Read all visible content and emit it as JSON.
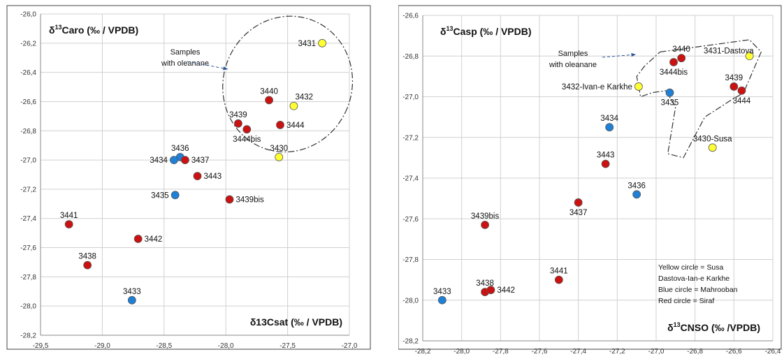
{
  "chart_data": [
    {
      "type": "scatter",
      "title": "",
      "ylabel": {
        "pre": "δ",
        "sup": "13",
        "post": "Caro (‰ / VPDB)"
      },
      "xlabel": {
        "pre": "δ13Csat (‰ / VPDB)",
        "sup": "",
        "post": ""
      },
      "xlim": [
        -29.5,
        -27.0
      ],
      "ylim": [
        -28.2,
        -26.0
      ],
      "xticks": [
        "-29,5",
        "-29,0",
        "-28,5",
        "-28,0",
        "-27,5",
        "-27,0"
      ],
      "yticks": [
        "-26,0",
        "-26,2",
        "-26,4",
        "-26,6",
        "-26,8",
        "-27,0",
        "-27,2",
        "-27,4",
        "-27,6",
        "-27,8",
        "-28,0",
        "-28,2"
      ],
      "grid": true,
      "colors": {
        "yellow": "#ffff33",
        "red": "#cc1111",
        "blue": "#1f80d8"
      },
      "annotation": [
        "Samples",
        "with oleanane"
      ],
      "points": [
        {
          "label": "3431",
          "x": -27.22,
          "y": -26.2,
          "color": "yellow",
          "pos": "left"
        },
        {
          "label": "3440",
          "x": -27.65,
          "y": -26.59,
          "color": "red",
          "pos": "top"
        },
        {
          "label": "3432",
          "x": -27.45,
          "y": -26.63,
          "color": "yellow",
          "pos": "topright"
        },
        {
          "label": "3439",
          "x": -27.9,
          "y": -26.75,
          "color": "red",
          "pos": "top"
        },
        {
          "label": "3444bis",
          "x": -27.83,
          "y": -26.79,
          "color": "red",
          "pos": "below"
        },
        {
          "label": "3444",
          "x": -27.56,
          "y": -26.76,
          "color": "red",
          "pos": "right"
        },
        {
          "label": "3430",
          "x": -27.57,
          "y": -26.98,
          "color": "yellow",
          "pos": "top"
        },
        {
          "label": "3436",
          "x": -28.37,
          "y": -26.98,
          "color": "blue",
          "pos": "top"
        },
        {
          "label": "3434",
          "x": -28.42,
          "y": -27.0,
          "color": "blue",
          "pos": "left"
        },
        {
          "label": "3437",
          "x": -28.33,
          "y": -27.0,
          "color": "red",
          "pos": "right"
        },
        {
          "label": "3443",
          "x": -28.23,
          "y": -27.11,
          "color": "red",
          "pos": "right"
        },
        {
          "label": "3435",
          "x": -28.41,
          "y": -27.24,
          "color": "blue",
          "pos": "left"
        },
        {
          "label": "3439bis",
          "x": -27.97,
          "y": -27.27,
          "color": "red",
          "pos": "right"
        },
        {
          "label": "3441",
          "x": -29.27,
          "y": -27.44,
          "color": "red",
          "pos": "top"
        },
        {
          "label": "3442",
          "x": -28.71,
          "y": -27.54,
          "color": "red",
          "pos": "right"
        },
        {
          "label": "3438",
          "x": -29.12,
          "y": -27.72,
          "color": "red",
          "pos": "top"
        },
        {
          "label": "3433",
          "x": -28.76,
          "y": -27.96,
          "color": "blue",
          "pos": "top"
        }
      ]
    },
    {
      "type": "scatter",
      "title": "",
      "ylabel": {
        "pre": "δ",
        "sup": "13",
        "post": "Casp (‰ / VPDB)"
      },
      "xlabel": {
        "pre": "δ",
        "sup": "13",
        "post": "CNSO (‰ /VPDB)"
      },
      "xlim": [
        -28.2,
        -26.4
      ],
      "ylim": [
        -28.2,
        -26.6
      ],
      "xticks": [
        "-28,2",
        "-28,0",
        "-27,8",
        "-27,6",
        "-27,4",
        "-27,2",
        "-27,0",
        "-26,8",
        "-26,6",
        "-26,4"
      ],
      "yticks": [
        "-26,6",
        "-26,8",
        "-27,0",
        "-27,2",
        "-27,4",
        "-27,6",
        "-27,8",
        "-28,0",
        "-28,2"
      ],
      "grid": true,
      "colors": {
        "yellow": "#ffff33",
        "red": "#cc1111",
        "blue": "#1f80d8"
      },
      "annotation": [
        "Samples",
        "with oleanane"
      ],
      "legend": [
        "Yellow circle = Susa",
        "Dastova-Ian-e Karkhe",
        "Blue circle = Mahrooban",
        "Red circle = Siraf"
      ],
      "points": [
        {
          "label": "3431-Dastova",
          "x": -26.52,
          "y": -26.8,
          "color": "yellow",
          "pos": "topleft"
        },
        {
          "label": "3440",
          "x": -26.87,
          "y": -26.81,
          "color": "red",
          "pos": "top"
        },
        {
          "label": "3444bis",
          "x": -26.91,
          "y": -26.83,
          "color": "red",
          "pos": "below"
        },
        {
          "label": "3439",
          "x": -26.6,
          "y": -26.95,
          "color": "red",
          "pos": "top"
        },
        {
          "label": "3444",
          "x": -26.56,
          "y": -26.97,
          "color": "red",
          "pos": "below"
        },
        {
          "label": "3432-Ivan-e Karkhe",
          "x": -27.09,
          "y": -26.95,
          "color": "yellow",
          "pos": "left"
        },
        {
          "label": "3435",
          "x": -26.93,
          "y": -26.98,
          "color": "blue",
          "pos": "below"
        },
        {
          "label": "3434",
          "x": -27.24,
          "y": -27.15,
          "color": "blue",
          "pos": "top"
        },
        {
          "label": "3430-Susa",
          "x": -26.71,
          "y": -27.25,
          "color": "yellow",
          "pos": "topcenter"
        },
        {
          "label": "3443",
          "x": -27.26,
          "y": -27.33,
          "color": "red",
          "pos": "top"
        },
        {
          "label": "3436",
          "x": -27.1,
          "y": -27.48,
          "color": "blue",
          "pos": "top"
        },
        {
          "label": "3437",
          "x": -27.4,
          "y": -27.52,
          "color": "red",
          "pos": "below"
        },
        {
          "label": "3439bis",
          "x": -27.88,
          "y": -27.63,
          "color": "red",
          "pos": "top"
        },
        {
          "label": "3441",
          "x": -27.5,
          "y": -27.9,
          "color": "red",
          "pos": "top"
        },
        {
          "label": "3438",
          "x": -27.88,
          "y": -27.96,
          "color": "red",
          "pos": "top"
        },
        {
          "label": "3442",
          "x": -27.85,
          "y": -27.95,
          "color": "red",
          "pos": "right"
        },
        {
          "label": "3433",
          "x": -28.1,
          "y": -28.0,
          "color": "blue",
          "pos": "top"
        }
      ]
    }
  ]
}
